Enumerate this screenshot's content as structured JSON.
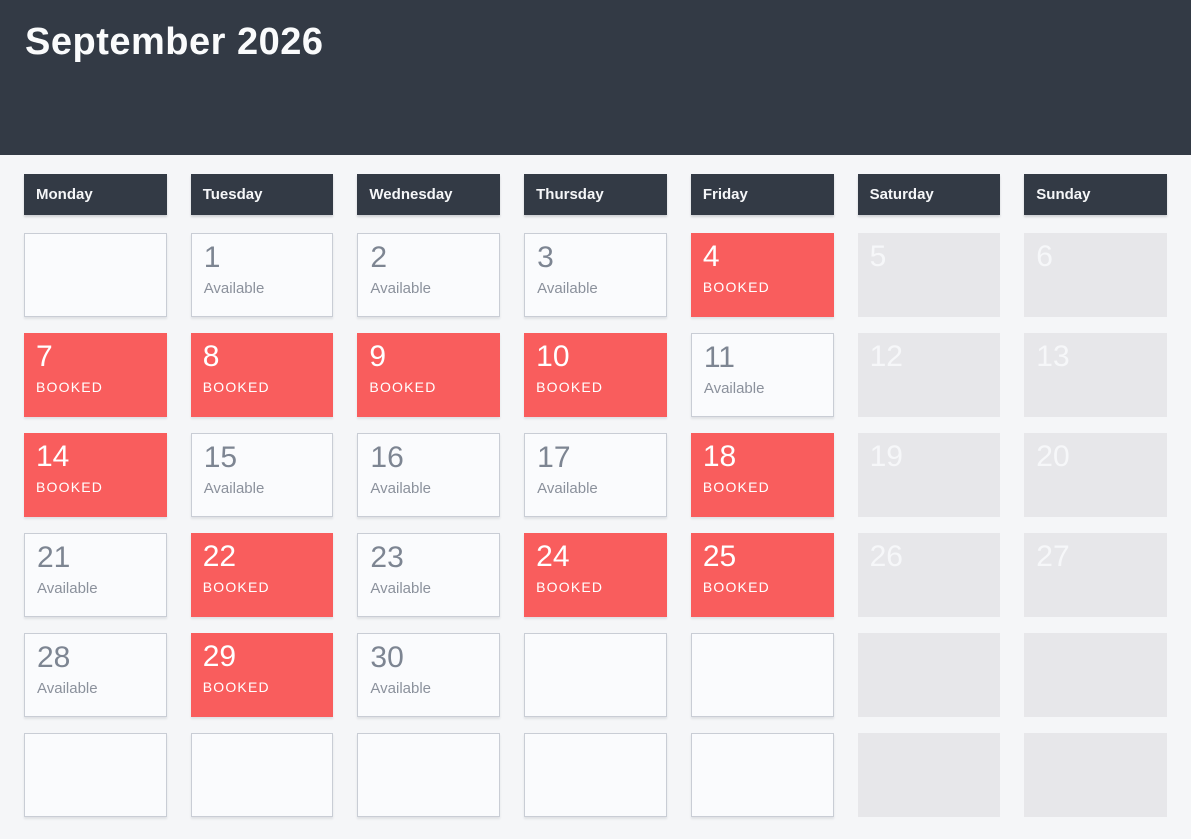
{
  "header": {
    "title": "September 2026"
  },
  "weekdays": [
    "Monday",
    "Tuesday",
    "Wednesday",
    "Thursday",
    "Friday",
    "Saturday",
    "Sunday"
  ],
  "status_labels": {
    "available": "Available",
    "booked": "BOOKED"
  },
  "weeks": [
    [
      {
        "state": "empty"
      },
      {
        "day": "1",
        "state": "available"
      },
      {
        "day": "2",
        "state": "available"
      },
      {
        "day": "3",
        "state": "available"
      },
      {
        "day": "4",
        "state": "booked"
      },
      {
        "day": "5",
        "state": "weekend"
      },
      {
        "day": "6",
        "state": "weekend"
      }
    ],
    [
      {
        "day": "7",
        "state": "booked"
      },
      {
        "day": "8",
        "state": "booked"
      },
      {
        "day": "9",
        "state": "booked"
      },
      {
        "day": "10",
        "state": "booked"
      },
      {
        "day": "11",
        "state": "available"
      },
      {
        "day": "12",
        "state": "weekend"
      },
      {
        "day": "13",
        "state": "weekend"
      }
    ],
    [
      {
        "day": "14",
        "state": "booked"
      },
      {
        "day": "15",
        "state": "available"
      },
      {
        "day": "16",
        "state": "available"
      },
      {
        "day": "17",
        "state": "available"
      },
      {
        "day": "18",
        "state": "booked"
      },
      {
        "day": "19",
        "state": "weekend"
      },
      {
        "day": "20",
        "state": "weekend"
      }
    ],
    [
      {
        "day": "21",
        "state": "available"
      },
      {
        "day": "22",
        "state": "booked"
      },
      {
        "day": "23",
        "state": "available"
      },
      {
        "day": "24",
        "state": "booked"
      },
      {
        "day": "25",
        "state": "booked"
      },
      {
        "day": "26",
        "state": "weekend"
      },
      {
        "day": "27",
        "state": "weekend"
      }
    ],
    [
      {
        "day": "28",
        "state": "available"
      },
      {
        "day": "29",
        "state": "booked"
      },
      {
        "day": "30",
        "state": "available"
      },
      {
        "state": "empty"
      },
      {
        "state": "empty"
      },
      {
        "state": "weekend-empty"
      },
      {
        "state": "weekend-empty"
      }
    ],
    [
      {
        "state": "empty"
      },
      {
        "state": "empty"
      },
      {
        "state": "empty"
      },
      {
        "state": "empty"
      },
      {
        "state": "empty"
      },
      {
        "state": "weekend-empty"
      },
      {
        "state": "weekend-empty"
      }
    ]
  ],
  "colors": {
    "header_bg": "#333a45",
    "page_bg": "#f5f6f8",
    "booked_bg": "#f95d5d",
    "weekend_bg": "#e7e7ea",
    "available_border": "#c9cdd5",
    "day_number": "#7d8592",
    "status_text": "#8b919c"
  }
}
